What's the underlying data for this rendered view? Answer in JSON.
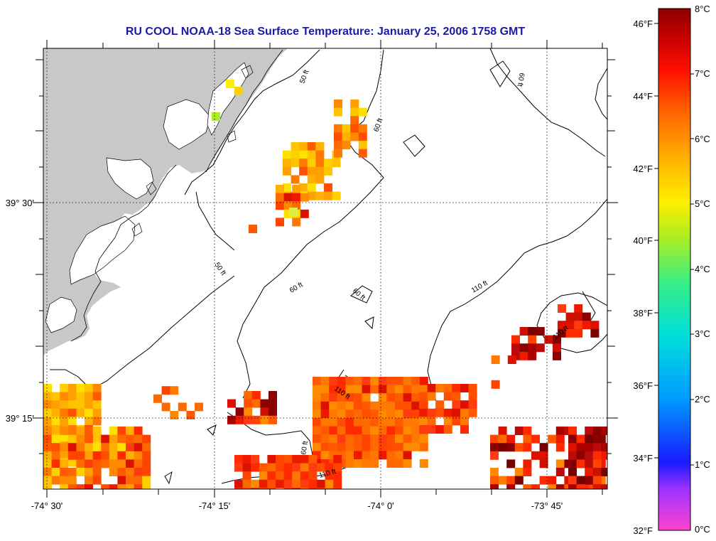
{
  "title": "RU COOL  NOAA-18  Sea Surface Temperature:  January 25, 2006 1758 GMT",
  "map": {
    "lon_labels": [
      "-74° 30'",
      "-74° 15'",
      "-74° 0'",
      "-73° 45'"
    ],
    "lat_labels": [
      "39° 30'",
      "39° 15'"
    ],
    "contour_labels": [
      "50 ft",
      "50 ft",
      "60 ft",
      "60 ft",
      "60 ft",
      "60 ft",
      "110 ft",
      "110 ft",
      "110 ft",
      "110 ft",
      "60 ft"
    ],
    "land_color": "#c8c8c8",
    "no_data_color": "#ffffff"
  },
  "colorbar": {
    "fahrenheit_labels": [
      "46°F",
      "44°F",
      "42°F",
      "40°F",
      "38°F",
      "36°F",
      "34°F",
      "32°F"
    ],
    "celsius_labels": [
      "8°C",
      "7°C",
      "6°C",
      "5°C",
      "4°C",
      "3°C",
      "2°C",
      "1°C",
      "0°C"
    ],
    "range_c": [
      0,
      8
    ],
    "colors_bottom_to_top": [
      "#ff44cc",
      "#9933ff",
      "#1a1aff",
      "#0099ff",
      "#00dddd",
      "#33ee88",
      "#aaee22",
      "#ffee00",
      "#ffaa00",
      "#ff6600",
      "#ff1100",
      "#cc0000",
      "#8b0000"
    ]
  }
}
